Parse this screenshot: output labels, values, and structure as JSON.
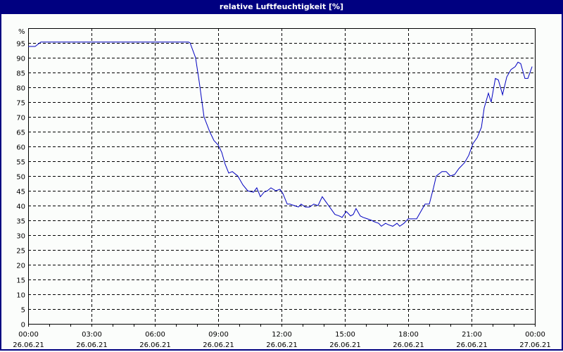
{
  "window": {
    "title": "relative Luftfeuchtigkeit [%]"
  },
  "colors": {
    "titlebar": "#000080",
    "line": "#0000c0",
    "grid": "#000000",
    "background": "#fbfdfb"
  },
  "chart_data": {
    "type": "line",
    "title": "relative Luftfeuchtigkeit [%]",
    "xlabel": "",
    "ylabel": "%",
    "ylim": [
      0,
      100
    ],
    "xlim_hours": [
      0,
      24
    ],
    "grid": true,
    "y_ticks": [
      0,
      5,
      10,
      15,
      20,
      25,
      30,
      35,
      40,
      45,
      50,
      55,
      60,
      65,
      70,
      75,
      80,
      85,
      90,
      95
    ],
    "x_ticks": [
      {
        "time": "00:00",
        "date": "26.06.21",
        "hour": 0
      },
      {
        "time": "03:00",
        "date": "26.06.21",
        "hour": 3
      },
      {
        "time": "06:00",
        "date": "26.06.21",
        "hour": 6
      },
      {
        "time": "09:00",
        "date": "26.06.21",
        "hour": 9
      },
      {
        "time": "12:00",
        "date": "26.06.21",
        "hour": 12
      },
      {
        "time": "15:00",
        "date": "26.06.21",
        "hour": 15
      },
      {
        "time": "18:00",
        "date": "26.06.21",
        "hour": 18
      },
      {
        "time": "21:00",
        "date": "26.06.21",
        "hour": 21
      },
      {
        "time": "00:00",
        "date": "27.06.21",
        "hour": 24
      }
    ],
    "series": [
      {
        "name": "relative Luftfeuchtigkeit",
        "x_hours": [
          0,
          0.33,
          0.6,
          7.6,
          7.67,
          7.93,
          8.1,
          8.33,
          8.6,
          8.8,
          9.0,
          9.17,
          9.33,
          9.5,
          9.67,
          9.93,
          10.17,
          10.4,
          10.67,
          10.83,
          11.0,
          11.17,
          11.33,
          11.5,
          11.73,
          11.93,
          12.07,
          12.27,
          12.4,
          12.6,
          12.8,
          12.93,
          13.13,
          13.33,
          13.53,
          13.73,
          13.93,
          14.13,
          14.33,
          14.53,
          14.73,
          14.87,
          15.07,
          15.27,
          15.4,
          15.53,
          15.73,
          15.87,
          16.07,
          16.27,
          16.4,
          16.6,
          16.73,
          16.93,
          17.07,
          17.27,
          17.47,
          17.6,
          17.8,
          18.0,
          18.2,
          18.4,
          18.6,
          18.8,
          19.0,
          19.2,
          19.33,
          19.6,
          19.8,
          20.0,
          20.2,
          20.4,
          20.67,
          20.87,
          21.07,
          21.27,
          21.47,
          21.6,
          21.8,
          21.93,
          22.13,
          22.27,
          22.47,
          22.67,
          22.87,
          23.07,
          23.2,
          23.33,
          23.53,
          23.67,
          23.87
        ],
        "values": [
          93.8,
          93.8,
          95.3,
          95.3,
          95,
          90,
          82,
          70,
          65,
          62,
          60.5,
          58,
          54,
          51,
          51.5,
          50,
          47,
          45,
          44.5,
          46,
          43,
          44.5,
          45,
          46,
          45,
          45.5,
          44,
          40.5,
          40.5,
          40,
          39.5,
          40.5,
          39.5,
          39.5,
          40.5,
          40,
          43,
          41,
          39,
          37,
          36.5,
          36,
          38,
          36.5,
          37,
          39,
          36.5,
          36,
          35.5,
          35,
          34.5,
          34,
          33,
          34,
          33.5,
          33,
          34,
          33,
          34,
          35.5,
          35.5,
          35.5,
          38,
          40.5,
          40.5,
          46,
          50,
          51.5,
          51.5,
          50,
          50.5,
          52.5,
          54.5,
          57,
          61,
          63,
          66.5,
          73,
          78,
          75,
          83,
          82.5,
          77.5,
          83.5,
          86,
          87,
          88.5,
          88,
          83,
          83,
          87
        ]
      }
    ]
  }
}
